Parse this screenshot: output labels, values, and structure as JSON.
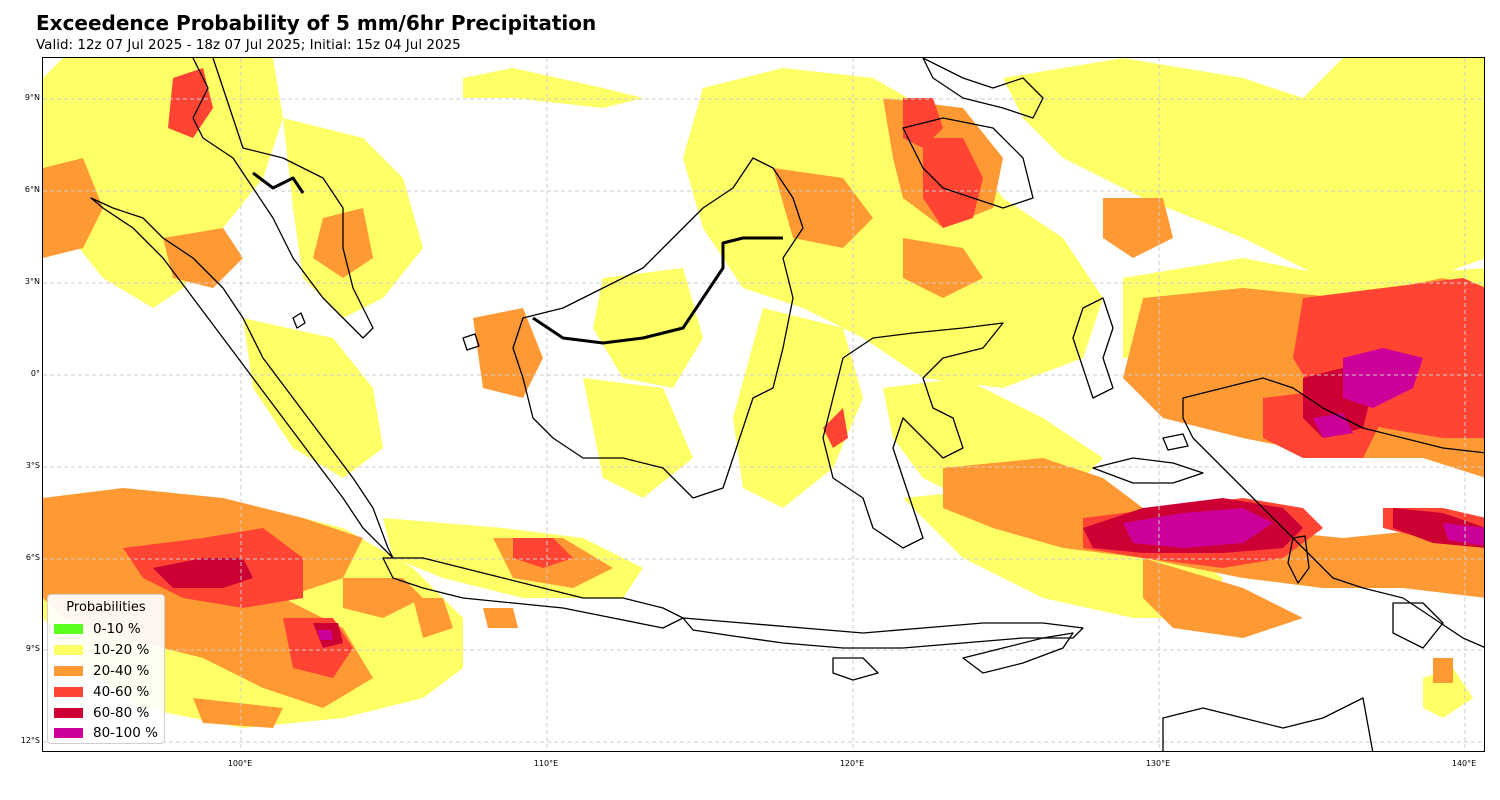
{
  "header": {
    "title": "Exceedence Probability of 5 mm/6hr Precipitation",
    "subtitle": "Valid: 12z 07 Jul 2025 - 18z 07 Jul 2025; Initial: 15z 04 Jul 2025"
  },
  "axes": {
    "lat_ticks": [
      "9°N",
      "6°N",
      "3°N",
      "0°",
      "3°S",
      "6°S",
      "9°S",
      "12°S"
    ],
    "lon_ticks": [
      "100°E",
      "110°E",
      "120°E",
      "130°E",
      "140°E"
    ]
  },
  "legend": {
    "title": "Probabilities",
    "items": [
      {
        "label": "0-10 %",
        "color": "#5aff1e"
      },
      {
        "label": "10-20 %",
        "color": "#ffff66"
      },
      {
        "label": "20-40 %",
        "color": "#ff9933"
      },
      {
        "label": "40-60 %",
        "color": "#ff4433"
      },
      {
        "label": "60-80 %",
        "color": "#cc0033"
      },
      {
        "label": "80-100 %",
        "color": "#cc0099"
      }
    ]
  },
  "colors": {
    "p10_20": "#ffff66",
    "p20_40": "#ff9933",
    "p40_60": "#ff4433",
    "p60_80": "#cc0033",
    "p80_100": "#cc0099",
    "coast": "#000000",
    "grid": "#cccccc"
  }
}
